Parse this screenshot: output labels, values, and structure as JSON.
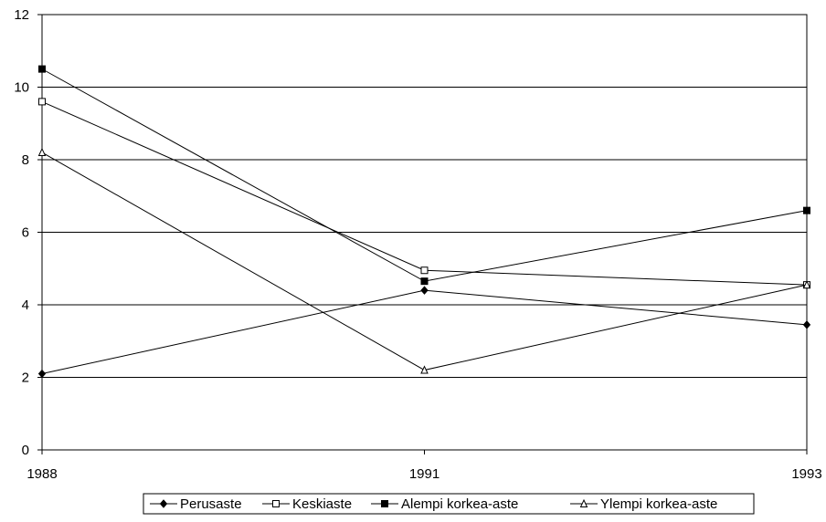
{
  "chart_data": {
    "type": "line",
    "title": "",
    "xlabel": "",
    "ylabel": "",
    "categories": [
      "1988",
      "1991",
      "1993"
    ],
    "ylim": [
      0,
      12
    ],
    "yticks": [
      "0",
      "2",
      "4",
      "6",
      "8",
      "10",
      "12"
    ],
    "grid": "horizontal",
    "legend_position": "bottom",
    "series": [
      {
        "name": "Perusaste",
        "marker": "diamond-filled",
        "values": [
          2.1,
          4.4,
          3.45
        ]
      },
      {
        "name": "Keskiaste",
        "marker": "square-open",
        "values": [
          9.6,
          4.95,
          4.55
        ]
      },
      {
        "name": "Alempi korkea-aste",
        "marker": "square-filled",
        "values": [
          10.5,
          4.65,
          6.6
        ]
      },
      {
        "name": "Ylempi korkea-aste",
        "marker": "triangle-open",
        "values": [
          8.2,
          2.2,
          4.55
        ]
      }
    ]
  }
}
